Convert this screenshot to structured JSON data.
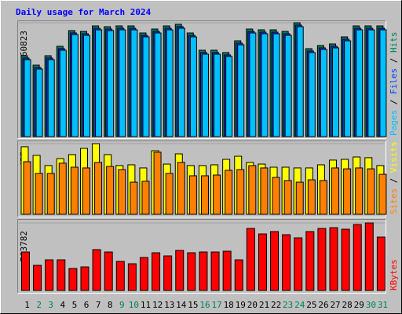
{
  "chart_data": [
    {
      "type": "bar",
      "title": "Daily usage for March 2024",
      "ylim": [
        0,
        60823
      ],
      "yticks": [
        60823
      ],
      "legend_separator": " / ",
      "series": [
        {
          "name": "Hits",
          "color": "#00805c",
          "values": [
            43210,
            38180,
            43210,
            48240,
            56630,
            56210,
            59150,
            58730,
            59150,
            59150,
            55370,
            57470,
            59150,
            59990,
            55370,
            46150,
            46150,
            44890,
            51180,
            57470,
            57050,
            57050,
            56210,
            60823,
            46980,
            48660,
            49500,
            53280,
            59150,
            59150,
            59150
          ]
        },
        {
          "name": "Files",
          "color": "#0040ff",
          "values": [
            41950,
            36920,
            41950,
            46980,
            55370,
            54950,
            57890,
            57470,
            57890,
            57890,
            54110,
            56210,
            57890,
            58730,
            54110,
            44890,
            44890,
            43630,
            49920,
            56210,
            55790,
            55790,
            54950,
            59570,
            45720,
            47400,
            48240,
            52020,
            57890,
            57890,
            57890
          ]
        },
        {
          "name": "Pages",
          "color": "#00c0ff",
          "values": [
            41110,
            36080,
            41110,
            46150,
            54530,
            54110,
            57050,
            56630,
            57050,
            57050,
            53280,
            55370,
            57050,
            57890,
            53280,
            44050,
            44050,
            42790,
            49080,
            55370,
            54950,
            54950,
            54110,
            58730,
            44890,
            46560,
            47400,
            51180,
            57050,
            57050,
            57050
          ]
        }
      ]
    },
    {
      "type": "bar",
      "ylim": [
        0,
        477
      ],
      "yticks": [
        477
      ],
      "legend_separator": " / ",
      "series": [
        {
          "name": "Visits",
          "color": "#ffff00",
          "values": [
            456,
            398,
            329,
            376,
            403,
            445,
            477,
            403,
            329,
            334,
            313,
            429,
            339,
            408,
            329,
            329,
            334,
            371,
            392,
            350,
            339,
            318,
            318,
            313,
            313,
            334,
            366,
            371,
            387,
            382,
            329
          ]
        },
        {
          "name": "Sites",
          "color": "#ff8000",
          "values": [
            355,
            276,
            276,
            345,
            318,
            313,
            350,
            323,
            302,
            217,
            223,
            419,
            276,
            350,
            260,
            260,
            265,
            297,
            302,
            329,
            313,
            249,
            228,
            217,
            233,
            228,
            313,
            307,
            313,
            307,
            270
          ]
        }
      ]
    },
    {
      "type": "bar",
      "ylim": [
        0,
        763782
      ],
      "yticks": [
        763782
      ],
      "legend_separator": " / ",
      "categories": [
        "1",
        "2",
        "3",
        "4",
        "5",
        "6",
        "7",
        "8",
        "9",
        "10",
        "11",
        "12",
        "13",
        "14",
        "15",
        "16",
        "17",
        "18",
        "19",
        "20",
        "21",
        "22",
        "23",
        "24",
        "25",
        "26",
        "27",
        "28",
        "29",
        "30",
        "31"
      ],
      "category_colors": [
        "#000000",
        "#00805c",
        "#00805c",
        "#000000",
        "#000000",
        "#000000",
        "#000000",
        "#000000",
        "#00805c",
        "#00805c",
        "#000000",
        "#000000",
        "#000000",
        "#000000",
        "#000000",
        "#00805c",
        "#00805c",
        "#000000",
        "#000000",
        "#000000",
        "#000000",
        "#000000",
        "#00805c",
        "#00805c",
        "#000000",
        "#000000",
        "#000000",
        "#000000",
        "#000000",
        "#00805c",
        "#00805c"
      ],
      "series": [
        {
          "name": "KBytes",
          "color": "#ff0000",
          "values": [
            435170,
            284190,
            346360,
            346360,
            248670,
            266430,
            461810,
            435170,
            328600,
            301950,
            373000,
            426290,
            390760,
            452930,
            426290,
            435170,
            435170,
            444050,
            346360,
            701600,
            639430,
            666070,
            630550,
            595030,
            666070,
            701600,
            710480,
            692720,
            745990,
            763782,
            603910
          ]
        }
      ]
    }
  ]
}
